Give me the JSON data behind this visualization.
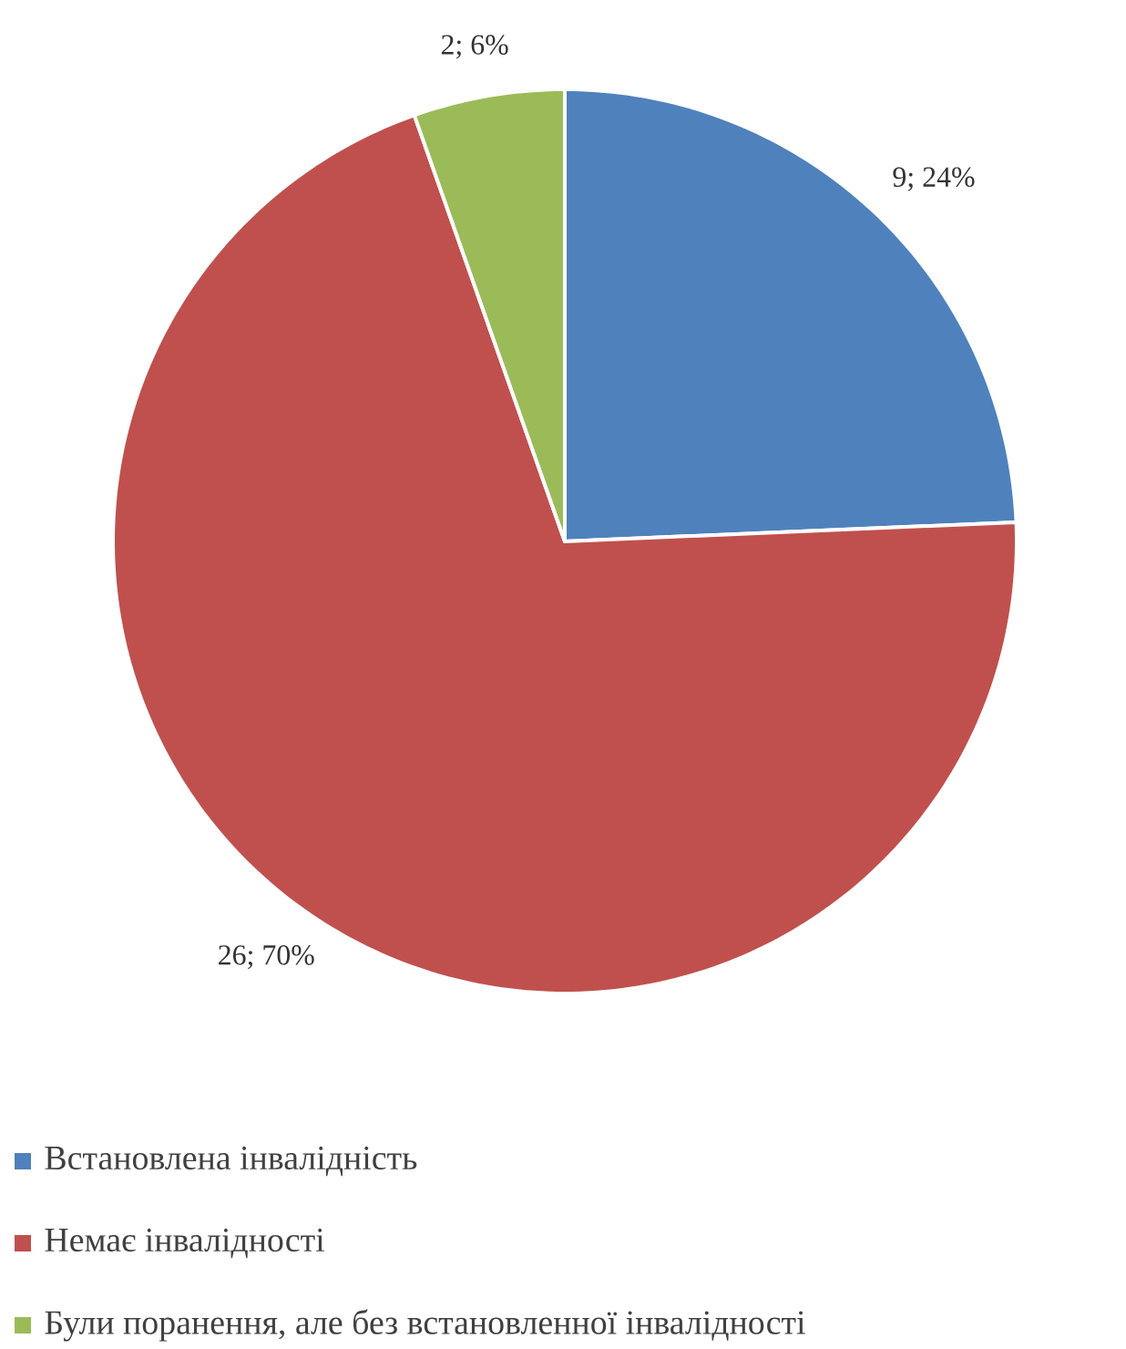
{
  "chart_data": {
    "type": "pie",
    "categories": [
      "Встановлена інвалідність",
      "Немає інвалідності",
      "Були поранення, але без встановленної інвалідності"
    ],
    "values": [
      9,
      26,
      2
    ],
    "colors": [
      "#4f81bd",
      "#c0504d",
      "#9bbb59"
    ],
    "value_labels": [
      "9; 24%",
      "26; 70%",
      "2; 6%"
    ],
    "legend": "bottom"
  }
}
